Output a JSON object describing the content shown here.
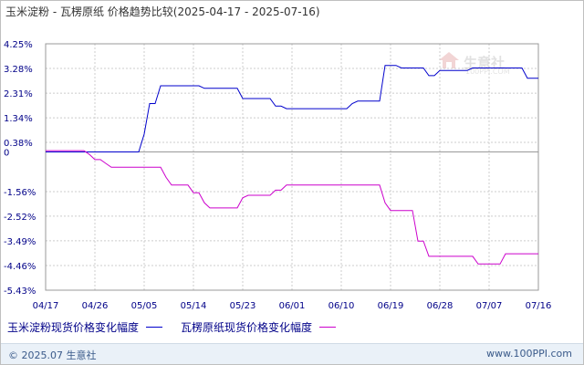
{
  "chart_data": {
    "type": "line",
    "title": "玉米淀粉 - 瓦楞原纸 价格趋势比较(2025-04-17 - 2025-07-16)",
    "x": [
      "04/17",
      "04/18",
      "04/19",
      "04/20",
      "04/21",
      "04/22",
      "04/23",
      "04/24",
      "04/25",
      "04/26",
      "04/27",
      "04/28",
      "04/29",
      "04/30",
      "05/01",
      "05/02",
      "05/03",
      "05/04",
      "05/05",
      "05/06",
      "05/07",
      "05/08",
      "05/09",
      "05/10",
      "05/11",
      "05/12",
      "05/13",
      "05/14",
      "05/15",
      "05/16",
      "05/17",
      "05/18",
      "05/19",
      "05/20",
      "05/21",
      "05/22",
      "05/23",
      "05/24",
      "05/25",
      "05/26",
      "05/27",
      "05/28",
      "05/29",
      "05/30",
      "05/31",
      "06/01",
      "06/02",
      "06/03",
      "06/04",
      "06/05",
      "06/06",
      "06/07",
      "06/08",
      "06/09",
      "06/10",
      "06/11",
      "06/12",
      "06/13",
      "06/14",
      "06/15",
      "06/16",
      "06/17",
      "06/18",
      "06/19",
      "06/20",
      "06/21",
      "06/22",
      "06/23",
      "06/24",
      "06/25",
      "06/26",
      "06/27",
      "06/28",
      "06/29",
      "06/30",
      "07/01",
      "07/02",
      "07/03",
      "07/04",
      "07/05",
      "07/06",
      "07/07",
      "07/08",
      "07/09",
      "07/10",
      "07/11",
      "07/12",
      "07/13",
      "07/14",
      "07/15",
      "07/16"
    ],
    "x_ticks": [
      "04/17",
      "04/26",
      "05/05",
      "05/14",
      "05/23",
      "06/01",
      "06/10",
      "06/19",
      "06/28",
      "07/07",
      "07/16"
    ],
    "y_ticks": [
      4.25,
      3.28,
      2.31,
      1.34,
      0.38,
      0,
      -1.56,
      -2.52,
      -3.49,
      -4.46,
      -5.43
    ],
    "y_tick_labels": [
      "4.25%",
      "3.28%",
      "2.31%",
      "1.34%",
      "0.38%",
      "0",
      "-1.56%",
      "-2.52%",
      "-3.49%",
      "-4.46%",
      "-5.43%"
    ],
    "ylim": [
      -5.43,
      4.25
    ],
    "grid": true,
    "legend_position": "bottom-left",
    "series": [
      {
        "name": "玉米淀粉现货价格变化幅度",
        "color": "#0000cc",
        "values": [
          0,
          0,
          0,
          0,
          0,
          0,
          0,
          0,
          0,
          0,
          0,
          0,
          0,
          0,
          0,
          0,
          0,
          0,
          0.7,
          1.9,
          1.9,
          2.6,
          2.6,
          2.6,
          2.6,
          2.6,
          2.6,
          2.6,
          2.6,
          2.5,
          2.5,
          2.5,
          2.5,
          2.5,
          2.5,
          2.5,
          2.1,
          2.1,
          2.1,
          2.1,
          2.1,
          2.1,
          1.8,
          1.8,
          1.7,
          1.7,
          1.7,
          1.7,
          1.7,
          1.7,
          1.7,
          1.7,
          1.7,
          1.7,
          1.7,
          1.7,
          1.9,
          2.0,
          2.0,
          2.0,
          2.0,
          2.0,
          3.4,
          3.4,
          3.4,
          3.3,
          3.3,
          3.3,
          3.3,
          3.3,
          3.0,
          3.0,
          3.2,
          3.2,
          3.2,
          3.2,
          3.2,
          3.2,
          3.3,
          3.3,
          3.3,
          3.3,
          3.3,
          3.3,
          3.3,
          3.3,
          3.3,
          3.3,
          2.9,
          2.9,
          2.9
        ]
      },
      {
        "name": "瓦楞原纸现货价格变化幅度",
        "color": "#cc00cc",
        "values": [
          0.05,
          0.05,
          0.05,
          0.05,
          0.05,
          0.05,
          0.05,
          0.05,
          -0.1,
          -0.3,
          -0.3,
          -0.45,
          -0.6,
          -0.6,
          -0.6,
          -0.6,
          -0.6,
          -0.6,
          -0.6,
          -0.6,
          -0.6,
          -0.6,
          -1.0,
          -1.3,
          -1.3,
          -1.3,
          -1.3,
          -1.6,
          -1.6,
          -2.0,
          -2.2,
          -2.2,
          -2.2,
          -2.2,
          -2.2,
          -2.2,
          -1.8,
          -1.7,
          -1.7,
          -1.7,
          -1.7,
          -1.7,
          -1.5,
          -1.5,
          -1.3,
          -1.3,
          -1.3,
          -1.3,
          -1.3,
          -1.3,
          -1.3,
          -1.3,
          -1.3,
          -1.3,
          -1.3,
          -1.3,
          -1.3,
          -1.3,
          -1.3,
          -1.3,
          -1.3,
          -1.3,
          -2.0,
          -2.3,
          -2.3,
          -2.3,
          -2.3,
          -2.3,
          -3.5,
          -3.5,
          -4.1,
          -4.1,
          -4.1,
          -4.1,
          -4.1,
          -4.1,
          -4.1,
          -4.1,
          -4.1,
          -4.4,
          -4.4,
          -4.4,
          -4.4,
          -4.4,
          -4.0,
          -4.0,
          -4.0,
          -4.0,
          -4.0,
          -4.0,
          -4.0
        ]
      }
    ]
  },
  "legend": {
    "item1": "玉米淀粉现货价格变化幅度",
    "item2": "瓦楞原纸现货价格变化幅度"
  },
  "footer": {
    "left": "© 2025.07 生意社",
    "right": "www.100PPI.com"
  },
  "watermark": {
    "text": "生意社",
    "sub": "100PPI.COM"
  },
  "colors": {
    "series1": "#0000cc",
    "series2": "#cc00cc",
    "axis_label": "#000088",
    "grid": "#cccccc"
  }
}
